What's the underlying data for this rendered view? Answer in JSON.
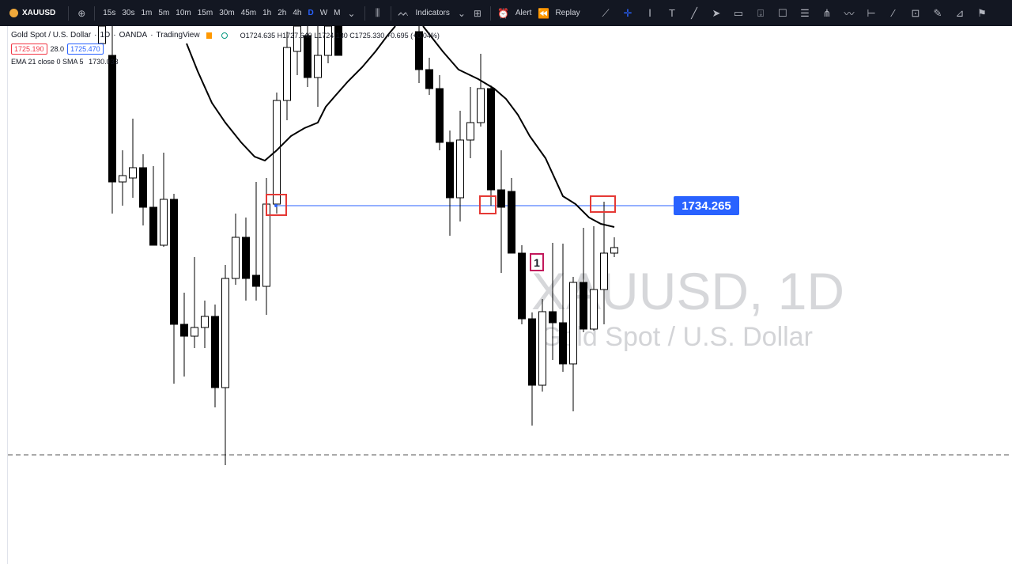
{
  "toolbar": {
    "symbol": "XAUUSD",
    "intervals": [
      "15s",
      "30s",
      "1m",
      "5m",
      "10m",
      "15m",
      "30m",
      "45m",
      "1h",
      "2h",
      "4h",
      "D",
      "W",
      "M"
    ],
    "active_interval": "D",
    "indicators_label": "Indicators",
    "alert_label": "Alert",
    "replay_label": "Replay"
  },
  "draw_tools": [
    "trend-line-icon",
    "crosshair-icon",
    "text-cursor-icon",
    "text-icon",
    "ray-icon",
    "arrow-cursor-icon",
    "callout-icon",
    "pin-icon",
    "comment-icon",
    "table-icon",
    "pitchfork-icon",
    "zigzag-icon",
    "range-icon",
    "brush-icon",
    "rectangle-icon",
    "pencil-icon",
    "ruler-icon",
    "flag-icon"
  ],
  "legend": {
    "title": "Gold Spot / U.S. Dollar",
    "interval": "1D",
    "exchange": "OANDA",
    "source": "TradingView",
    "open": "O1724.635",
    "high": "H1727.640",
    "low": "L1724.130",
    "close": "C1725.330",
    "change": "+0.695 (+0.04%)",
    "bid": "1725.190",
    "spread": "28.0",
    "ask": "1725.470",
    "indicator": "EMA 21 close 0 SMA 5",
    "indicator_value": "1730.033"
  },
  "watermark": {
    "symbol": "XAUUSD, 1D",
    "description": "Gold Spot / U.S. Dollar"
  },
  "horizontal_line_price": "1734.265",
  "numbered_label": "1",
  "colors": {
    "up": "#ffffff",
    "down": "#000000",
    "line": "#2962ff",
    "highlight": "#e53935"
  }
}
